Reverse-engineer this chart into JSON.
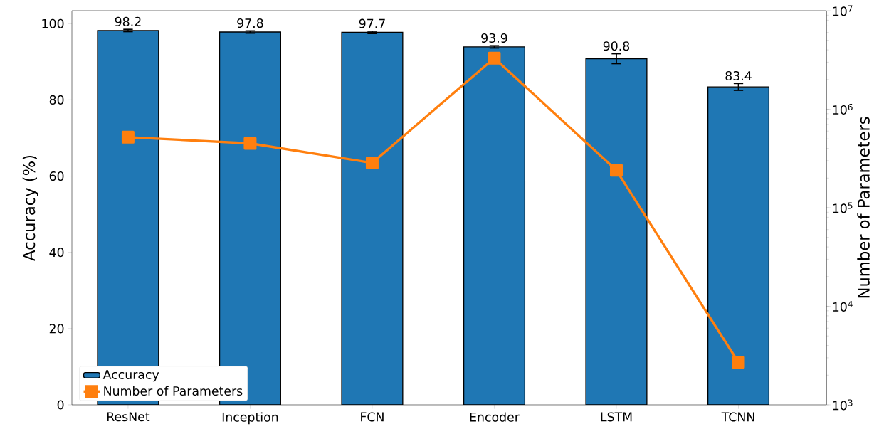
{
  "chart_data": {
    "type": "bar",
    "categories": [
      "ResNet",
      "Inception",
      "FCN",
      "Encoder",
      "LSTM",
      "TCNN"
    ],
    "ylabel": "Accuracy (%)",
    "y2label": "Number of Parameters",
    "ylim": [
      0,
      103.4
    ],
    "yticks": [
      0,
      20,
      40,
      60,
      80,
      100
    ],
    "y2lim": [
      1000,
      10000000
    ],
    "y2ticks": [
      {
        "value": 1000,
        "label": "10$^{3}$"
      },
      {
        "value": 10000,
        "label": "10$^{4}$"
      },
      {
        "value": 100000,
        "label": "10$^{5}$"
      },
      {
        "value": 1000000,
        "label": "10$^{6}$"
      },
      {
        "value": 10000000,
        "label": "10$^{7}$"
      }
    ],
    "log": "y2",
    "legend": "bottom left",
    "grid": false,
    "series": [
      {
        "name": "Accuracy",
        "color": "#1f77b4",
        "values": [
          98.2,
          97.8,
          97.7,
          93.9,
          90.8,
          83.4
        ],
        "errors": [
          0.3,
          0.3,
          0.3,
          0.3,
          1.3,
          0.9
        ],
        "value_labels": [
          "98.2",
          "97.8",
          "97.7",
          "93.9",
          "90.8",
          "83.4"
        ]
      },
      {
        "name": "Number of Parameters",
        "type": "line",
        "axis": "y2",
        "color": "#ff7f0e",
        "marker": "square",
        "line_style": "solid",
        "values": [
          520000,
          450000,
          285000,
          3300000,
          240000,
          2700
        ]
      }
    ]
  }
}
